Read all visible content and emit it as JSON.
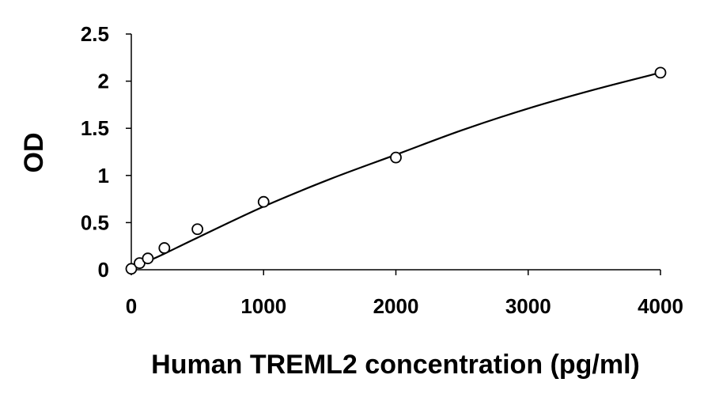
{
  "chart_data": {
    "type": "scatter",
    "title": "",
    "xlabel": "Human TREML2 concentration (pg/ml)",
    "ylabel": "OD",
    "xlim": [
      0,
      4000
    ],
    "ylim": [
      0,
      2.5
    ],
    "xticks": [
      0,
      1000,
      2000,
      3000,
      4000
    ],
    "xtick_labels": [
      "0",
      "1000",
      "2000",
      "3000",
      "4000"
    ],
    "yticks": [
      0,
      0.5,
      1,
      1.5,
      2,
      2.5
    ],
    "ytick_labels": [
      "0",
      "0.5",
      "1",
      "1.5",
      "2",
      "2.5"
    ],
    "grid": false,
    "legend": "none",
    "series": [
      {
        "marker": "open-circle",
        "x": [
          0,
          62.5,
          125,
          250,
          500,
          1000,
          2000,
          4000
        ],
        "y": [
          0.01,
          0.07,
          0.12,
          0.23,
          0.43,
          0.72,
          1.19,
          2.09
        ]
      }
    ],
    "fit_curve": {
      "kind": "smooth-fit",
      "x": [
        0,
        62.5,
        125,
        250,
        500,
        1000,
        1500,
        2000,
        2500,
        3000,
        3500,
        4000
      ],
      "y": [
        0.0,
        0.05,
        0.09,
        0.17,
        0.34,
        0.67,
        0.96,
        1.22,
        1.48,
        1.71,
        1.91,
        2.09
      ]
    },
    "colors": {
      "axis": "#000000",
      "marker_stroke": "#000000",
      "marker_fill": "#ffffff",
      "curve": "#000000"
    }
  }
}
